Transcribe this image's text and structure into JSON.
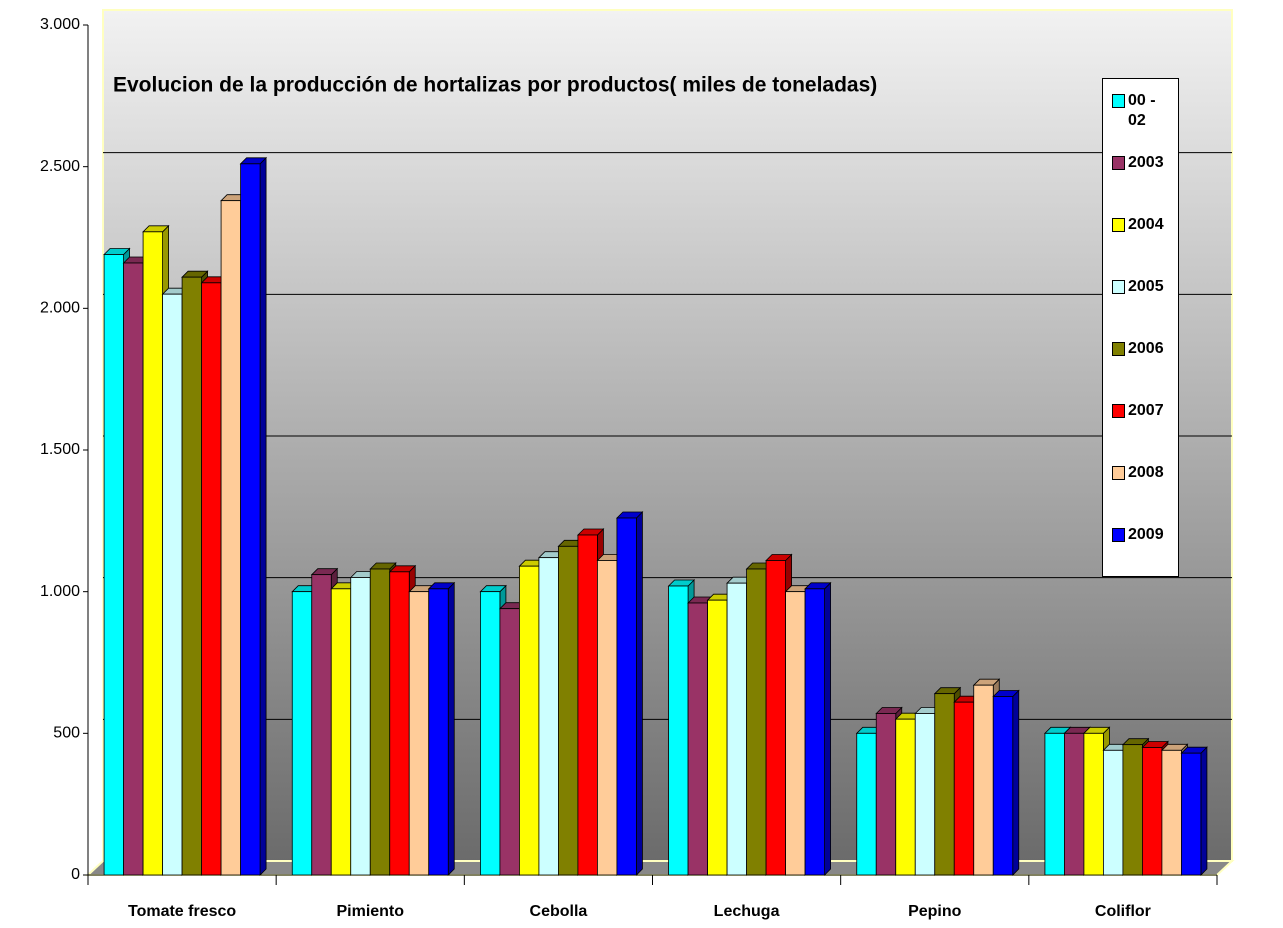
{
  "chart_data": {
    "type": "bar3d",
    "title": "Evolucion de la producción de hortalizas por productos( miles de toneladas)",
    "categories": [
      "Tomate fresco",
      "Pimiento",
      "Cebolla",
      "Lechuga",
      "Pepino",
      "Coliflor"
    ],
    "series": [
      {
        "name": "00 - 02",
        "color": "#00ffff",
        "values": [
          2190,
          1000,
          1000,
          1020,
          500,
          500
        ]
      },
      {
        "name": "2003",
        "color": "#993366",
        "values": [
          2160,
          1060,
          940,
          960,
          570,
          500
        ]
      },
      {
        "name": "2004",
        "color": "#ffff00",
        "values": [
          2270,
          1010,
          1090,
          970,
          550,
          500
        ]
      },
      {
        "name": "2005",
        "color": "#ccffff",
        "values": [
          2050,
          1050,
          1120,
          1030,
          570,
          440
        ]
      },
      {
        "name": "2006",
        "color": "#808000",
        "values": [
          2110,
          1080,
          1160,
          1080,
          640,
          460
        ]
      },
      {
        "name": "2007",
        "color": "#ff0000",
        "values": [
          2090,
          1070,
          1200,
          1110,
          610,
          450
        ]
      },
      {
        "name": "2008",
        "color": "#ffcc99",
        "values": [
          2380,
          1000,
          1110,
          1000,
          670,
          440
        ]
      },
      {
        "name": "2009",
        "color": "#0000ff",
        "values": [
          2510,
          1010,
          1260,
          1010,
          630,
          430
        ]
      }
    ],
    "ylim": [
      0,
      3000
    ],
    "yticks": [
      0,
      500,
      {
        "value": 1000,
        "label": "1.000"
      },
      {
        "value": 1500,
        "label": "1.500"
      },
      {
        "value": 2000,
        "label": "2.000"
      },
      {
        "value": 2500,
        "label": "2.500"
      },
      {
        "value": 3000,
        "label": "3.000"
      }
    ],
    "grid": true,
    "legend": "right"
  }
}
